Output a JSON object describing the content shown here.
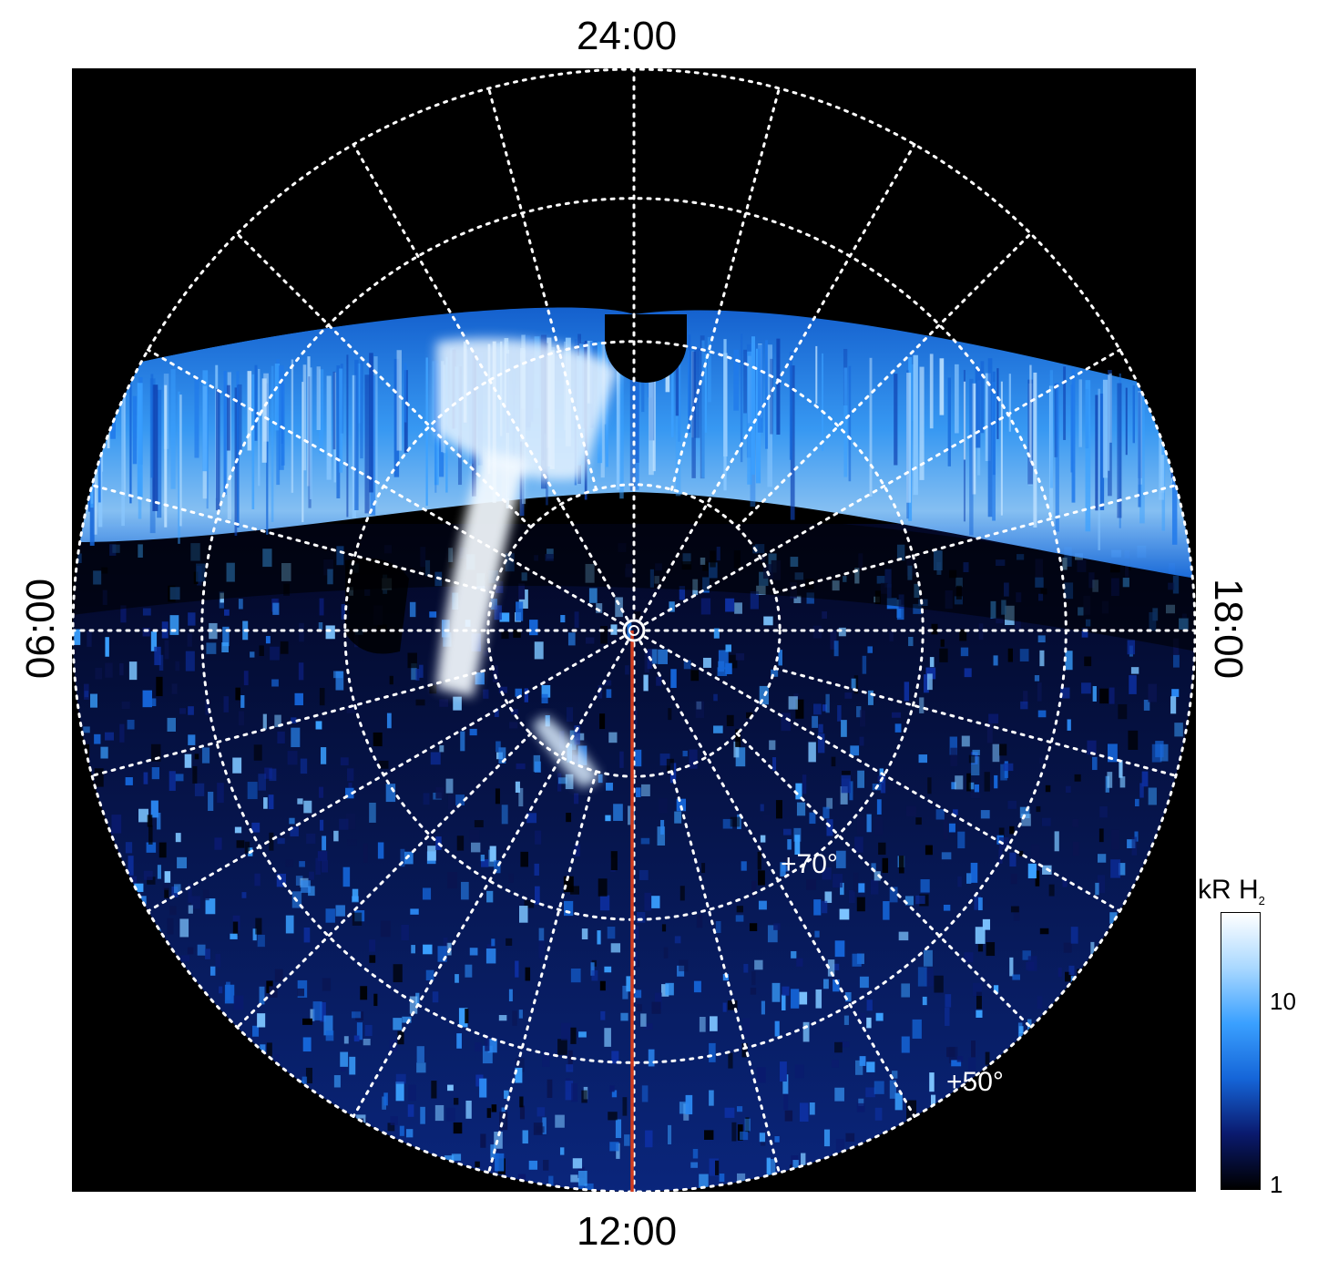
{
  "local_time_labels": {
    "top": "24:00",
    "bottom": "12:00",
    "left": "06:00",
    "right": "18:00"
  },
  "latitude_labels": [
    "+70°",
    "+50°"
  ],
  "colorbar": {
    "title": "kR H",
    "title_subscript": "2",
    "scale": "log",
    "range": [
      1,
      30
    ],
    "ticks": [
      {
        "value": 1,
        "label": "1"
      },
      {
        "value": 10,
        "label": "10"
      }
    ],
    "colors": [
      "#000000",
      "#0a1a6e",
      "#1565d8",
      "#3aa0ff",
      "#a9d8ff",
      "#ffffff"
    ]
  },
  "map": {
    "background_color": "#000000",
    "grid_color": "#ffffff",
    "meridian_color": "#d23c1e",
    "highlighted_meridian": "12:00"
  }
}
